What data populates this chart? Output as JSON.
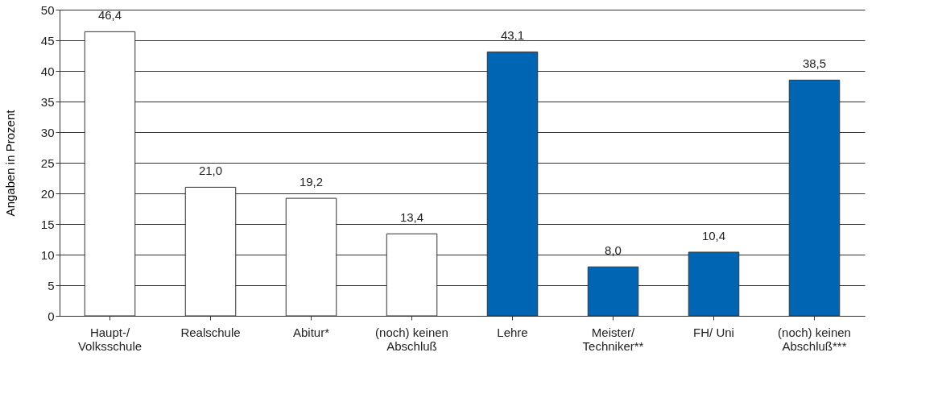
{
  "chart_data": {
    "type": "bar",
    "ylabel": "Angaben in Prozent",
    "categories": [
      "Haupt-/\nVolksschule",
      "Realschule",
      "Abitur*",
      "(noch) keinen\nAbschluß",
      "Lehre",
      "Meister/\nTechniker**",
      "FH/ Uni",
      "(noch) keinen\nAbschluß***"
    ],
    "values": [
      46.4,
      21.0,
      19.2,
      13.4,
      43.1,
      8.0,
      10.4,
      38.5
    ],
    "value_labels": [
      "46,4",
      "21,0",
      "19,2",
      "13,4",
      "43,1",
      "8,0",
      "10,4",
      "38,5"
    ],
    "colors": [
      "#ffffff",
      "#ffffff",
      "#ffffff",
      "#ffffff",
      "#0066b3",
      "#0066b3",
      "#0066b3",
      "#0066b3"
    ],
    "ylim": [
      0,
      50
    ],
    "yticks": [
      0,
      5,
      10,
      15,
      20,
      25,
      30,
      35,
      40,
      45,
      50
    ],
    "grid": "y"
  }
}
